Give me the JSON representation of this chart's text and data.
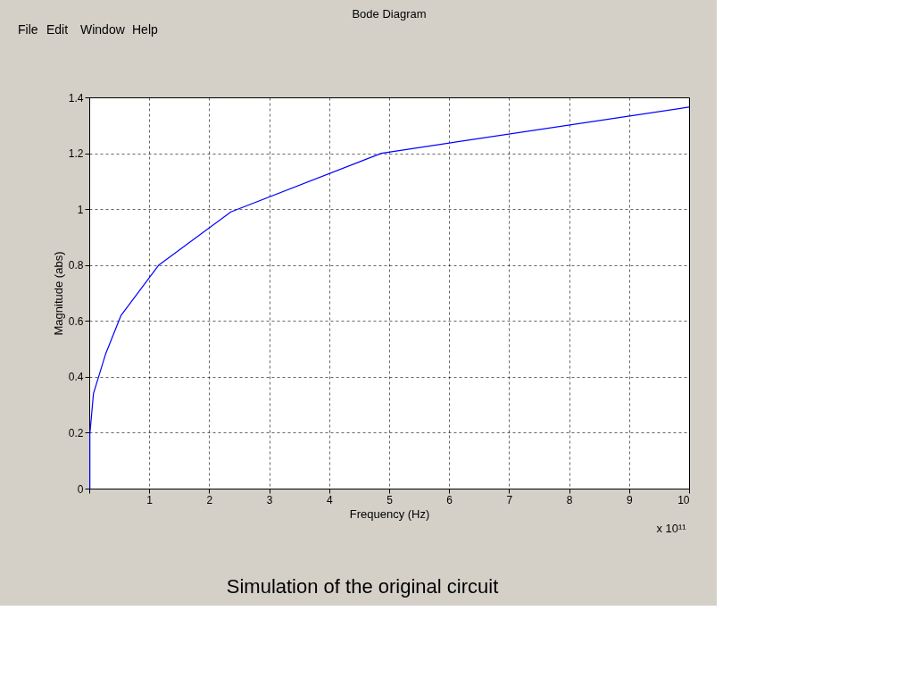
{
  "chart_data": {
    "type": "line",
    "title": "Bode Diagram",
    "xlabel": "Frequency  (Hz)",
    "ylabel": "Magnitude (abs)",
    "x": [
      0.01,
      0.01,
      0.07,
      0.27,
      0.53,
      1.16,
      2.36,
      4.87,
      10
    ],
    "series": [
      {
        "color": "#0000ff",
        "values": [
          0,
          0.195,
          0.34,
          0.48,
          0.62,
          0.8,
          0.99,
          1.2,
          1.365
        ]
      }
    ],
    "xlim": [
      0,
      10
    ],
    "ylim": [
      0,
      1.4
    ],
    "xticks": [
      {
        "value": 0,
        "label": null
      },
      1,
      2,
      3,
      4,
      5,
      6,
      7,
      8,
      9,
      10
    ],
    "yticks": [
      0,
      0.2,
      0.4,
      0.6,
      0.8,
      1,
      1.2,
      1.4
    ],
    "grid": true,
    "marker": "none",
    "line_style": "solid",
    "annotations": [
      "x 10¹¹",
      "Simulation of the original circuit",
      "File",
      "Edit",
      "Window",
      "Help"
    ]
  }
}
